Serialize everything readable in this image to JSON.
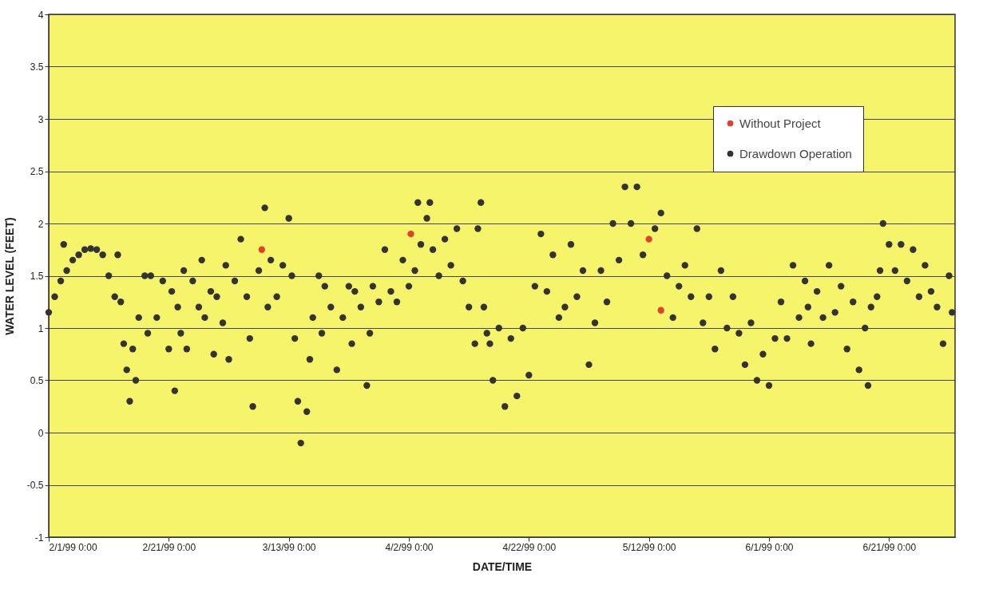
{
  "chart_data": {
    "type": "scatter",
    "xlabel": "DATE/TIME",
    "ylabel": "WATER LEVEL (FEET)",
    "xlim": [
      "1999-02-01",
      "1999-07-02"
    ],
    "ylim": [
      -1,
      4
    ],
    "xticks": [
      {
        "value": "1999-02-01",
        "label": "2/1/99 0:00"
      },
      {
        "value": "1999-02-21",
        "label": "2/21/99 0:00"
      },
      {
        "value": "1999-03-13",
        "label": "3/13/99 0:00"
      },
      {
        "value": "1999-04-02",
        "label": "4/2/99 0:00"
      },
      {
        "value": "1999-04-22",
        "label": "4/22/99 0:00"
      },
      {
        "value": "1999-05-12",
        "label": "5/12/99 0:00"
      },
      {
        "value": "1999-06-01",
        "label": "6/1/99 0:00"
      },
      {
        "value": "1999-06-21",
        "label": "6/21/99 0:00"
      }
    ],
    "yticks": [
      -1,
      -0.5,
      0,
      0.5,
      1,
      1.5,
      2,
      2.5,
      3,
      3.5,
      4
    ],
    "grid": "y",
    "legend": "top right",
    "marker": "circle",
    "series": [
      {
        "name": "Without Project",
        "color": "#e0412c",
        "x": [
          "1999-03-08T12:00",
          "1999-04-02T08:00",
          "1999-05-12T00:00",
          "1999-05-14T00:00"
        ],
        "values": [
          1.75,
          1.9,
          1.85,
          1.17
        ]
      },
      {
        "name": "Drawdown Operation",
        "color": "#333333",
        "x": [
          "1999-02-01",
          "1999-02-02",
          "1999-02-03",
          "1999-02-03T12:00",
          "1999-02-04",
          "1999-02-05",
          "1999-02-06",
          "1999-02-07",
          "1999-02-08",
          "1999-02-09",
          "1999-02-10",
          "1999-02-11",
          "1999-02-12",
          "1999-02-12T12:00",
          "1999-02-13",
          "1999-02-13T12:00",
          "1999-02-14",
          "1999-02-14T12:00",
          "1999-02-15",
          "1999-02-15T12:00",
          "1999-02-16",
          "1999-02-17",
          "1999-02-17T12:00",
          "1999-02-18",
          "1999-02-19",
          "1999-02-20",
          "1999-02-21",
          "1999-02-21T12:00",
          "1999-02-22",
          "1999-02-22T12:00",
          "1999-02-23",
          "1999-02-23T12:00",
          "1999-02-24",
          "1999-02-25",
          "1999-02-26",
          "1999-02-26T12:00",
          "1999-02-27",
          "1999-02-28",
          "1999-02-28T12:00",
          "1999-03-01",
          "1999-03-02",
          "1999-03-02T12:00",
          "1999-03-03",
          "1999-03-04",
          "1999-03-05",
          "1999-03-06",
          "1999-03-06T12:00",
          "1999-03-07",
          "1999-03-08",
          "1999-03-09",
          "1999-03-09T12:00",
          "1999-03-10",
          "1999-03-11",
          "1999-03-12",
          "1999-03-13",
          "1999-03-13T12:00",
          "1999-03-14",
          "1999-03-14T12:00",
          "1999-03-15",
          "1999-03-16",
          "1999-03-16T12:00",
          "1999-03-17",
          "1999-03-18",
          "1999-03-18T12:00",
          "1999-03-19",
          "1999-03-20",
          "1999-03-21",
          "1999-03-22",
          "1999-03-23",
          "1999-03-23T12:00",
          "1999-03-24",
          "1999-03-25",
          "1999-03-26",
          "1999-03-26T12:00",
          "1999-03-27",
          "1999-03-28",
          "1999-03-29",
          "1999-03-30",
          "1999-03-31",
          "1999-04-01",
          "1999-04-02",
          "1999-04-03",
          "1999-04-03T12:00",
          "1999-04-04",
          "1999-04-05",
          "1999-04-05T12:00",
          "1999-04-06",
          "1999-04-07",
          "1999-04-08",
          "1999-04-09",
          "1999-04-10",
          "1999-04-11",
          "1999-04-12",
          "1999-04-13",
          "1999-04-13T12:00",
          "1999-04-14",
          "1999-04-14T12:00",
          "1999-04-15",
          "1999-04-15T12:00",
          "1999-04-16",
          "1999-04-17",
          "1999-04-18",
          "1999-04-19",
          "1999-04-20",
          "1999-04-21",
          "1999-04-22",
          "1999-04-23",
          "1999-04-24",
          "1999-04-25",
          "1999-04-26",
          "1999-04-27",
          "1999-04-28",
          "1999-04-29",
          "1999-04-30",
          "1999-05-01",
          "1999-05-02",
          "1999-05-03",
          "1999-05-04",
          "1999-05-05",
          "1999-05-06",
          "1999-05-07",
          "1999-05-08",
          "1999-05-09",
          "1999-05-10",
          "1999-05-11",
          "1999-05-13",
          "1999-05-14",
          "1999-05-15",
          "1999-05-16",
          "1999-05-17",
          "1999-05-18",
          "1999-05-19",
          "1999-05-20",
          "1999-05-21",
          "1999-05-22",
          "1999-05-23",
          "1999-05-24",
          "1999-05-25",
          "1999-05-26",
          "1999-05-27",
          "1999-05-28",
          "1999-05-29",
          "1999-05-30",
          "1999-05-31",
          "1999-06-01",
          "1999-06-02",
          "1999-06-03",
          "1999-06-04",
          "1999-06-05",
          "1999-06-06",
          "1999-06-07",
          "1999-06-07T12:00",
          "1999-06-08",
          "1999-06-09",
          "1999-06-10",
          "1999-06-11",
          "1999-06-12",
          "1999-06-13",
          "1999-06-14",
          "1999-06-15",
          "1999-06-16",
          "1999-06-17",
          "1999-06-17T12:00",
          "1999-06-18",
          "1999-06-19",
          "1999-06-19T12:00",
          "1999-06-20",
          "1999-06-21",
          "1999-06-22",
          "1999-06-23",
          "1999-06-24",
          "1999-06-25",
          "1999-06-26",
          "1999-06-27",
          "1999-06-28",
          "1999-06-29",
          "1999-06-30",
          "1999-07-01",
          "1999-07-01T12:00"
        ],
        "values": [
          1.15,
          1.3,
          1.45,
          1.8,
          1.55,
          1.65,
          1.7,
          1.75,
          1.76,
          1.75,
          1.7,
          1.5,
          1.3,
          1.7,
          1.25,
          0.85,
          0.6,
          0.3,
          0.8,
          0.5,
          1.1,
          1.5,
          0.95,
          1.5,
          1.1,
          1.45,
          0.8,
          1.35,
          0.4,
          1.2,
          0.95,
          1.55,
          0.8,
          1.45,
          1.2,
          1.65,
          1.1,
          1.35,
          0.75,
          1.3,
          1.05,
          1.6,
          0.7,
          1.45,
          1.85,
          1.3,
          0.9,
          0.25,
          1.55,
          2.15,
          1.2,
          1.65,
          1.3,
          1.6,
          2.05,
          1.5,
          0.9,
          0.3,
          -0.1,
          0.2,
          0.7,
          1.1,
          1.5,
          0.95,
          1.4,
          1.2,
          0.6,
          1.1,
          1.4,
          0.85,
          1.35,
          1.2,
          0.45,
          0.95,
          1.4,
          1.25,
          1.75,
          1.35,
          1.25,
          1.65,
          1.4,
          1.55,
          2.2,
          1.8,
          2.05,
          2.2,
          1.75,
          1.5,
          1.85,
          1.6,
          1.95,
          1.45,
          1.2,
          0.85,
          1.95,
          2.2,
          1.2,
          0.95,
          0.85,
          0.5,
          1.0,
          0.25,
          0.9,
          0.35,
          1.0,
          0.55,
          1.4,
          1.9,
          1.35,
          1.7,
          1.1,
          1.2,
          1.8,
          1.3,
          1.55,
          0.65,
          1.05,
          1.55,
          1.25,
          2.0,
          1.65,
          2.35,
          2.0,
          2.35,
          1.7,
          1.95,
          2.1,
          1.5,
          1.1,
          1.4,
          1.6,
          1.3,
          1.95,
          1.05,
          1.3,
          0.8,
          1.55,
          1.0,
          1.3,
          0.95,
          0.65,
          1.05,
          0.5,
          0.75,
          0.45,
          0.9,
          1.25,
          0.9,
          1.6,
          1.1,
          1.45,
          1.2,
          0.85,
          1.35,
          1.1,
          1.6,
          1.15,
          1.4,
          0.8,
          1.25,
          0.6,
          1.0,
          0.45,
          1.2,
          1.3,
          1.55,
          2.0,
          1.8,
          1.55,
          1.8,
          1.45,
          1.75,
          1.3,
          1.6,
          1.35,
          1.2,
          0.85,
          1.5,
          1.15
        ]
      }
    ]
  }
}
